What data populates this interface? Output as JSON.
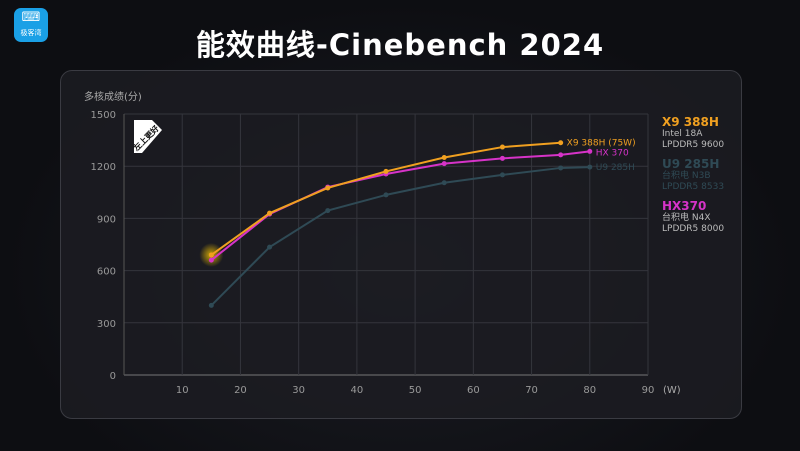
{
  "logo": {
    "text": "极客湾"
  },
  "title": "能效曲线-Cinebench 2024",
  "chart_data": {
    "type": "line",
    "title": "能效曲线-Cinebench 2024",
    "ylabel": "多核成绩(分)",
    "xlabel": "(W)",
    "xlim": [
      0,
      90
    ],
    "ylim": [
      0,
      1500
    ],
    "xticks": [
      10,
      20,
      30,
      40,
      50,
      60,
      70,
      80,
      90
    ],
    "yticks": [
      0,
      300,
      600,
      900,
      1200,
      1500
    ],
    "grid": true,
    "badge": "左上更好",
    "series": [
      {
        "name": "U9 285H",
        "color": "#2f4a55",
        "end_label": "U9 285H",
        "x": [
          15,
          25,
          35,
          45,
          55,
          65,
          75,
          80
        ],
        "y": [
          400,
          735,
          945,
          1035,
          1105,
          1150,
          1190,
          1195
        ]
      },
      {
        "name": "HX370",
        "color": "#d633c8",
        "end_label": "HX 370",
        "x": [
          15,
          25,
          35,
          45,
          55,
          65,
          75,
          80
        ],
        "y": [
          660,
          925,
          1080,
          1155,
          1215,
          1245,
          1265,
          1285
        ]
      },
      {
        "name": "X9 388H",
        "color": "#f0a020",
        "end_label": "X9 388H (75W)",
        "x": [
          15,
          25,
          35,
          45,
          55,
          65,
          75
        ],
        "y": [
          690,
          930,
          1075,
          1170,
          1250,
          1310,
          1335
        ]
      }
    ],
    "legend": [
      {
        "name": "X9 388H",
        "line1": "Intel 18A",
        "line2": "LPDDR5 9600",
        "color": "#f0a020"
      },
      {
        "name": "U9 285H",
        "line1": "台积电 N3B",
        "line2": "LPDDR5 8533",
        "color": "#2f4a55"
      },
      {
        "name": "HX370",
        "line1": "台积电 N4X",
        "line2": "LPDDR5 8000",
        "color": "#d633c8"
      }
    ],
    "legend_position": "right"
  }
}
